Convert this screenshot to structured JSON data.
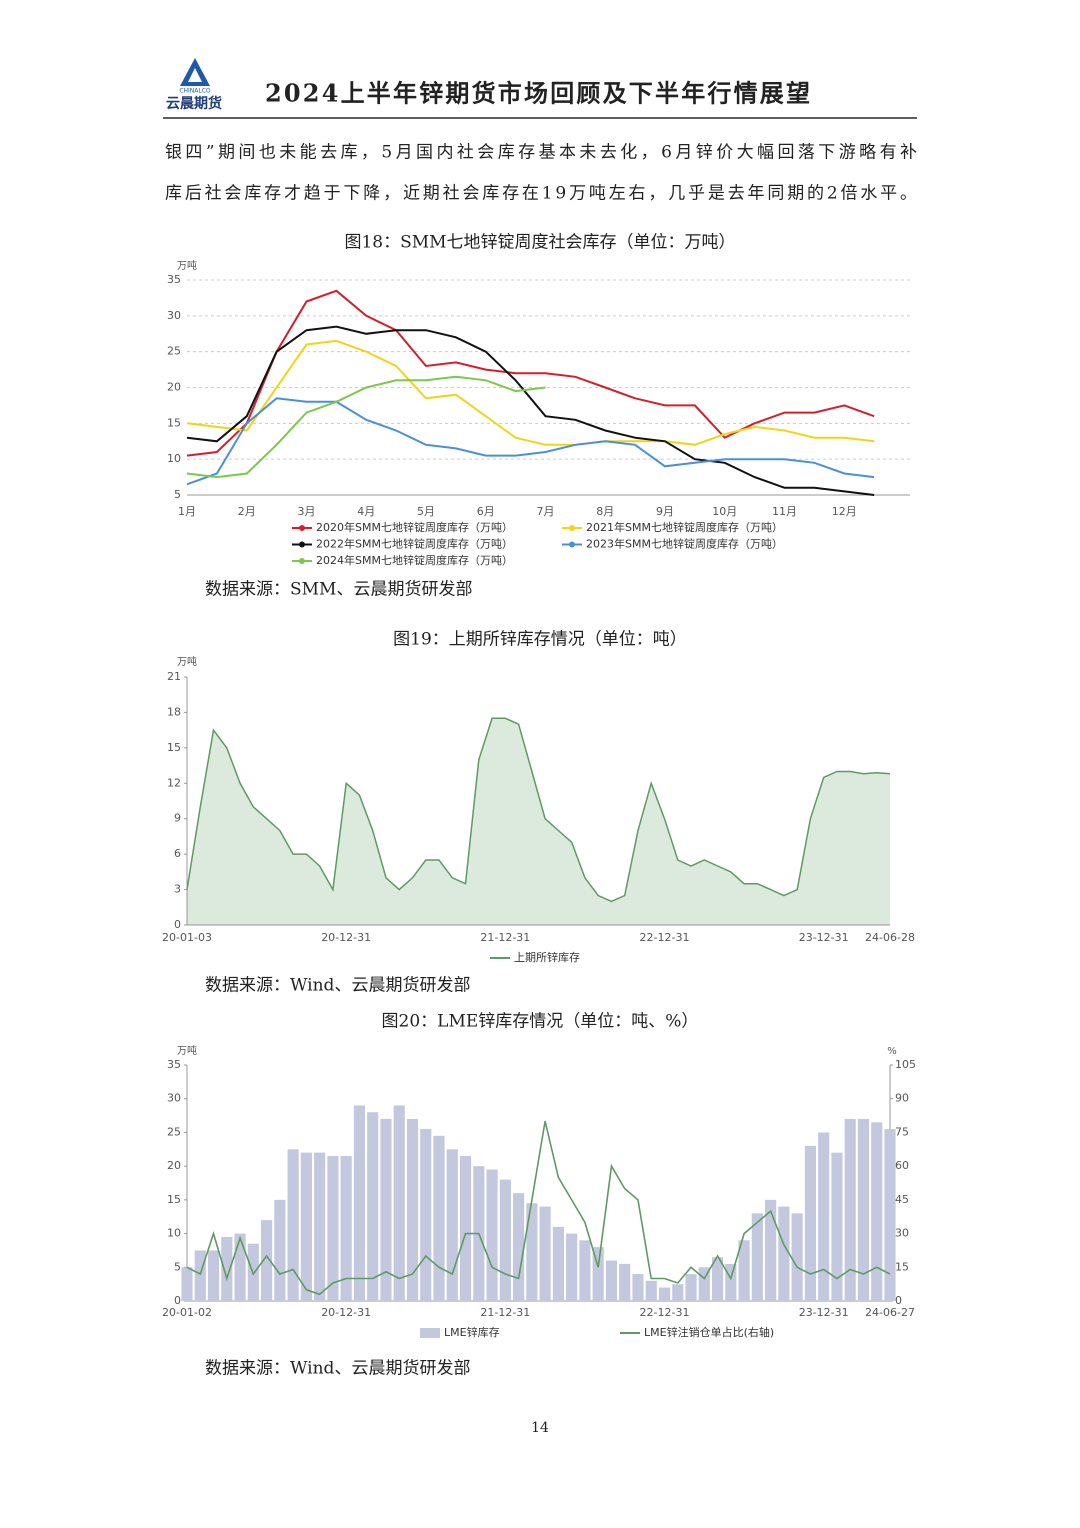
{
  "header": {
    "logo_en": "CHINALCO",
    "logo_cn": "云晨期货",
    "title": "2024上半年锌期货市场回顾及下半年行情展望"
  },
  "paragraph": [
    "银四”期间也未能去库，5月国内社会库存基本未去化，6月锌价大幅回落下游略有补",
    "库后社会库存才趋于下降，近期社会库存在19万吨左右，几乎是去年同期的2倍水平。"
  ],
  "chart_data": [
    {
      "type": "line",
      "title": "图18：SMM七地锌锭周度社会库存（单位：万吨）",
      "y_unit": "万吨",
      "categories": [
        "1月",
        null,
        "2月",
        null,
        "3月",
        null,
        "4月",
        null,
        "5月",
        null,
        "6月",
        null,
        "7月",
        null,
        "8月",
        null,
        "9月",
        null,
        "10月",
        null,
        "11月",
        null,
        "12月",
        null
      ],
      "series": [
        {
          "name": "2020年SMM七地锌锭周度库存（万吨）",
          "color": "#d0202e",
          "values": [
            10.5,
            11,
            15,
            25,
            32,
            33.5,
            30,
            28,
            23,
            23.5,
            22.5,
            22,
            22,
            21.5,
            20,
            18.5,
            17.5,
            17.5,
            13,
            15,
            16.5,
            16.5,
            17.5,
            16
          ]
        },
        {
          "name": "2021年SMM七地锌锭周度库存（万吨）",
          "color": "#f2d418",
          "values": [
            15,
            14.5,
            14,
            20,
            26,
            26.5,
            25,
            23,
            18.5,
            19,
            16,
            13,
            12,
            12,
            12.5,
            12.5,
            12.5,
            12,
            13.5,
            14.5,
            14,
            13,
            13,
            12.5
          ]
        },
        {
          "name": "2022年SMM七地锌锭周度库存（万吨）",
          "color": "#111111",
          "values": [
            13,
            12.5,
            16,
            25,
            28,
            28.5,
            27.5,
            28,
            28,
            27,
            25,
            21,
            16,
            15.5,
            14,
            13,
            12.5,
            10,
            9.5,
            7.5,
            6,
            6,
            5.5,
            5
          ]
        },
        {
          "name": "2023年SMM七地锌锭周度库存（万吨）",
          "color": "#4a90d9",
          "values": [
            6.5,
            8,
            15,
            18.5,
            18,
            18,
            15.5,
            14,
            12,
            11.5,
            10.5,
            10.5,
            11,
            12,
            12.5,
            12,
            9,
            9.5,
            10,
            10,
            10,
            9.5,
            8,
            7.5
          ]
        },
        {
          "name": "2024年SMM七地锌锭周度库存（万吨）",
          "color": "#7cc84a",
          "values": [
            8,
            7.5,
            8,
            12,
            16.5,
            18,
            20,
            21,
            21,
            21.5,
            21,
            19.5,
            20,
            null,
            null,
            null,
            null,
            null,
            null,
            null,
            null,
            null,
            null,
            null
          ]
        }
      ],
      "ylim": [
        5,
        35
      ],
      "yticks": [
        5,
        10,
        15,
        20,
        25,
        30,
        35
      ],
      "grid": true,
      "source": "数据来源：SMM、云晨期货研发部"
    },
    {
      "type": "area",
      "title": "图19：上期所锌库存情况（单位：吨）",
      "y_unit": "万吨",
      "categories": [
        "20-01-03",
        null,
        null,
        null,
        null,
        null,
        null,
        null,
        null,
        null,
        null,
        null,
        "20-12-31",
        null,
        null,
        null,
        null,
        null,
        null,
        null,
        null,
        null,
        null,
        null,
        "21-12-31",
        null,
        null,
        null,
        null,
        null,
        null,
        null,
        null,
        null,
        null,
        null,
        "22-12-31",
        null,
        null,
        null,
        null,
        null,
        null,
        null,
        null,
        null,
        null,
        null,
        "23-12-31",
        null,
        null,
        null,
        null,
        "24-06-28"
      ],
      "series": [
        {
          "name": "上期所锌库存",
          "color": "#5f9a64",
          "values": [
            3,
            10,
            16.5,
            15,
            12,
            10,
            9,
            8,
            6,
            6,
            5,
            3,
            12,
            11,
            8,
            4,
            3,
            4,
            5.5,
            5.5,
            4,
            3.5,
            14,
            17.5,
            17.5,
            17,
            13,
            9,
            8,
            7,
            4,
            2.5,
            2,
            2.5,
            8,
            12,
            9,
            5.5,
            5,
            5.5,
            5,
            4.5,
            3.5,
            3.5,
            3,
            2.5,
            3,
            9,
            12.5,
            13,
            13,
            12.8,
            12.9,
            12.8
          ]
        }
      ],
      "ylim": [
        0,
        21
      ],
      "yticks": [
        0,
        3,
        6,
        9,
        12,
        15,
        18,
        21
      ],
      "grid": false,
      "source": "数据来源：Wind、云晨期货研发部"
    },
    {
      "type": "bar",
      "title": "图20：LME锌库存情况（单位：吨、%）",
      "y_unit": "万吨",
      "y2_unit": "%",
      "categories": [
        "20-01-02",
        null,
        null,
        null,
        null,
        null,
        null,
        null,
        null,
        null,
        null,
        null,
        "20-12-31",
        null,
        null,
        null,
        null,
        null,
        null,
        null,
        null,
        null,
        null,
        null,
        "21-12-31",
        null,
        null,
        null,
        null,
        null,
        null,
        null,
        null,
        null,
        null,
        null,
        "22-12-31",
        null,
        null,
        null,
        null,
        null,
        null,
        null,
        null,
        null,
        null,
        null,
        "23-12-31",
        null,
        null,
        null,
        null,
        "24-06-27"
      ],
      "series": [
        {
          "name": "LME锌库存",
          "color": "#c4c8de",
          "values": [
            5,
            7.5,
            7.5,
            9.5,
            10,
            8.5,
            12,
            15,
            22.5,
            22,
            22,
            21.5,
            21.5,
            29,
            28,
            27,
            29,
            27,
            25.5,
            24.5,
            22.5,
            21.5,
            20,
            19.5,
            18,
            16,
            14.5,
            14,
            11,
            10,
            9,
            8,
            6,
            5.5,
            4,
            3,
            2,
            2.5,
            4,
            5,
            6.5,
            5.5,
            9,
            13,
            15,
            14,
            13,
            23,
            25,
            22,
            27,
            27,
            26.5,
            25.5
          ]
        },
        {
          "name": "LME锌注销仓单占比(右轴)",
          "color": "#5f9a64",
          "axis": "y2",
          "values": [
            15,
            12,
            30,
            10,
            28,
            12,
            20,
            12,
            14,
            5,
            3,
            8,
            10,
            10,
            10,
            13,
            10,
            12,
            20,
            15,
            12,
            30,
            30,
            15,
            12,
            10,
            45,
            80,
            55,
            45,
            35,
            15,
            60,
            50,
            45,
            10,
            10,
            8,
            15,
            10,
            20,
            10,
            30,
            35,
            40,
            25,
            15,
            12,
            14,
            10,
            14,
            12,
            15,
            12
          ]
        }
      ],
      "ylim": [
        0,
        35
      ],
      "yticks": [
        0,
        5,
        10,
        15,
        20,
        25,
        30,
        35
      ],
      "y2lim": [
        0,
        105
      ],
      "y2ticks": [
        0,
        15,
        30,
        45,
        60,
        75,
        90,
        105
      ],
      "grid": false,
      "source": "数据来源：Wind、云晨期货研发部"
    }
  ],
  "page_number": "14"
}
